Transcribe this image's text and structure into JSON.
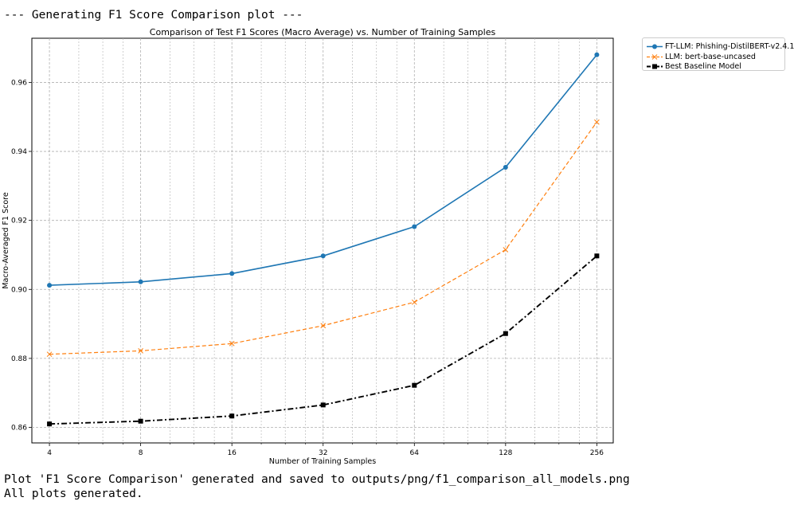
{
  "console": {
    "header": "--- Generating F1 Score Comparison plot ---",
    "saved": "Plot 'F1 Score Comparison' generated and saved to outputs/png/f1_comparison_all_models.png",
    "done": "All plots generated."
  },
  "chart_data": {
    "type": "line",
    "title": "Comparison of Test F1 Scores (Macro Average) vs. Number of Training Samples",
    "xlabel": "Number of Training Samples",
    "ylabel": "Macro-Averaged F1 Score",
    "x_scale": "log2",
    "x": [
      4,
      8,
      16,
      32,
      64,
      128,
      256
    ],
    "x_tick_labels": [
      "4",
      "8",
      "16",
      "32",
      "64",
      "128",
      "256"
    ],
    "y_ticks": [
      0.86,
      0.88,
      0.9,
      0.92,
      0.94,
      0.96
    ],
    "y_tick_labels": [
      "0.86",
      "0.88",
      "0.90",
      "0.92",
      "0.94",
      "0.96"
    ],
    "xlim": [
      3.5,
      290
    ],
    "ylim": [
      0.8555,
      0.9728
    ],
    "grid": true,
    "legend_position": "outside-top-right",
    "series": [
      {
        "name": "FT-LLM: Phishing-DistilBERT-v2.4.1",
        "values": [
          0.9012,
          0.9022,
          0.9046,
          0.9097,
          0.9182,
          0.9354,
          0.968
        ],
        "color": "#1f77b4",
        "line_style": "solid",
        "marker": "circle"
      },
      {
        "name": "LLM: bert-base-uncased",
        "values": [
          0.8812,
          0.8822,
          0.8843,
          0.8895,
          0.8963,
          0.9115,
          0.9485
        ],
        "color": "#ff7f0e",
        "line_style": "dashed",
        "marker": "x"
      },
      {
        "name": "Best Baseline Model",
        "values": [
          0.861,
          0.8618,
          0.8633,
          0.8665,
          0.8722,
          0.8872,
          0.9097
        ],
        "color": "#000000",
        "line_style": "dashdot",
        "marker": "square"
      }
    ]
  }
}
